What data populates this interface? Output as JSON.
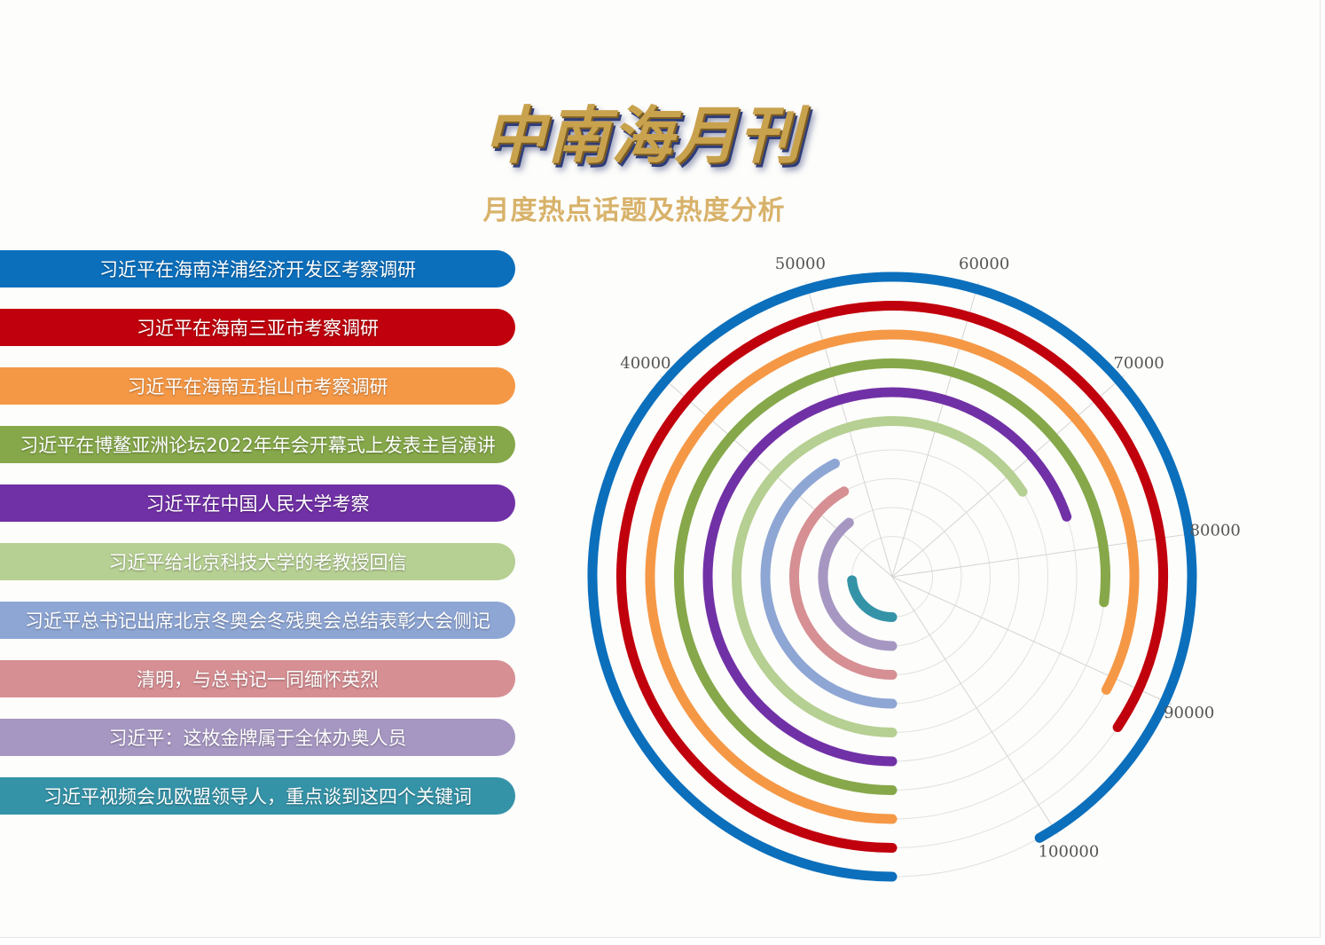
{
  "header": {
    "title": "中南海月刊",
    "subtitle": "月度热点话题及热度分析"
  },
  "chart_data": {
    "type": "polar-bar",
    "angle_axis": {
      "min": 0,
      "max": 110000,
      "tick_labels": [
        "40000",
        "50000",
        "60000",
        "70000",
        "80000",
        "90000",
        "100000"
      ],
      "tick_values": [
        40000,
        50000,
        60000,
        70000,
        80000,
        90000,
        100000
      ]
    },
    "grid": true,
    "series": [
      {
        "name": "习近平在海南洋浦经济开发区考察调研",
        "value": 101000,
        "color": "#0b6fbc"
      },
      {
        "name": "习近平在海南三亚市考察调研",
        "value": 92800,
        "color": "#c0000c"
      },
      {
        "name": "习近平在海南五指山市考察调研",
        "value": 91000,
        "color": "#f59846"
      },
      {
        "name": "习近平在博鳌亚洲论坛2022年年会开幕式上发表主旨演讲",
        "value": 84600,
        "color": "#86a84a"
      },
      {
        "name": "习近平在中国人民大学考察",
        "value": 76700,
        "color": "#7131a6"
      },
      {
        "name": "习近平给北京科技大学的老教授回信",
        "value": 72400,
        "color": "#b6cf92"
      },
      {
        "name": "习近平总书记出席北京冬奥会冬残奥会总结表彰大会侧记",
        "value": 46800,
        "color": "#8ea6d4"
      },
      {
        "name": "清明，与总书记一同缅怀英烈",
        "value": 46000,
        "color": "#d68f93"
      },
      {
        "name": "习近平：这枚金牌属于全体办奥人员",
        "value": 43200,
        "color": "#a697c2"
      },
      {
        "name": "习近平视频会见欧盟领导人，重点谈到这四个关键词",
        "value": 26000,
        "color": "#3593a8"
      }
    ]
  }
}
